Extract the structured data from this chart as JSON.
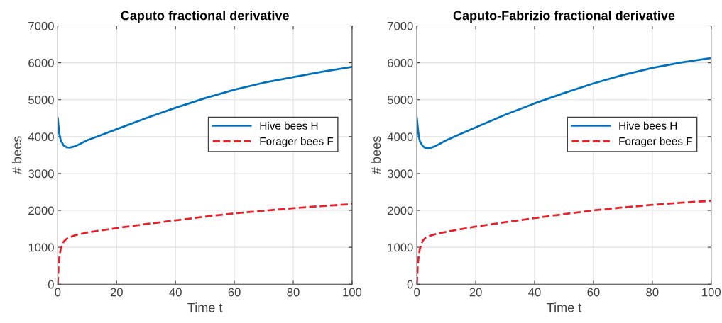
{
  "chart_data": [
    {
      "type": "line",
      "title": "Caputo fractional derivative",
      "xlabel": "Time t",
      "ylabel": "# bees",
      "xlim": [
        0,
        100
      ],
      "ylim": [
        0,
        7000
      ],
      "xticks": [
        0,
        20,
        40,
        60,
        80,
        100
      ],
      "yticks": [
        0,
        1000,
        2000,
        3000,
        4000,
        5000,
        6000,
        7000
      ],
      "grid": true,
      "legend": "right",
      "series": [
        {
          "name": "Hive bees H",
          "color": "#0072bd",
          "line_style": "solid",
          "x": [
            0,
            0.5,
            1,
            2,
            3,
            4,
            6,
            10,
            15,
            20,
            30,
            40,
            50,
            60,
            70,
            80,
            90,
            100
          ],
          "values": [
            4500,
            4100,
            3900,
            3760,
            3710,
            3700,
            3740,
            3900,
            4050,
            4200,
            4500,
            4780,
            5040,
            5270,
            5460,
            5610,
            5760,
            5890
          ]
        },
        {
          "name": "Forager bees F",
          "color": "#e8202a",
          "line_style": "dashed",
          "x": [
            0,
            0.25,
            0.5,
            1,
            2,
            3,
            4,
            6,
            10,
            15,
            20,
            30,
            40,
            50,
            60,
            70,
            80,
            90,
            100
          ],
          "values": [
            0,
            450,
            700,
            950,
            1150,
            1230,
            1270,
            1330,
            1400,
            1460,
            1520,
            1630,
            1730,
            1830,
            1920,
            1990,
            2060,
            2120,
            2170
          ]
        }
      ]
    },
    {
      "type": "line",
      "title": "Caputo-Fabrizio fractional derivative",
      "xlabel": "Time t",
      "ylabel": "# bees",
      "xlim": [
        0,
        100
      ],
      "ylim": [
        0,
        7000
      ],
      "xticks": [
        0,
        20,
        40,
        60,
        80,
        100
      ],
      "yticks": [
        0,
        1000,
        2000,
        3000,
        4000,
        5000,
        6000,
        7000
      ],
      "grid": true,
      "legend": "right",
      "series": [
        {
          "name": "Hive bees H",
          "color": "#0072bd",
          "line_style": "solid",
          "x": [
            0,
            0.5,
            1,
            2,
            3,
            4,
            6,
            10,
            15,
            20,
            30,
            40,
            50,
            60,
            70,
            80,
            90,
            100
          ],
          "values": [
            4500,
            4100,
            3880,
            3740,
            3690,
            3680,
            3730,
            3900,
            4080,
            4250,
            4590,
            4900,
            5180,
            5440,
            5670,
            5860,
            6010,
            6130
          ]
        },
        {
          "name": "Forager bees F",
          "color": "#e8202a",
          "line_style": "dashed",
          "x": [
            0,
            0.25,
            0.5,
            1,
            2,
            3,
            4,
            6,
            10,
            15,
            20,
            30,
            40,
            50,
            60,
            70,
            80,
            90,
            100
          ],
          "values": [
            0,
            420,
            680,
            950,
            1180,
            1260,
            1300,
            1350,
            1420,
            1490,
            1560,
            1680,
            1790,
            1900,
            2000,
            2080,
            2150,
            2210,
            2260
          ]
        }
      ]
    }
  ]
}
